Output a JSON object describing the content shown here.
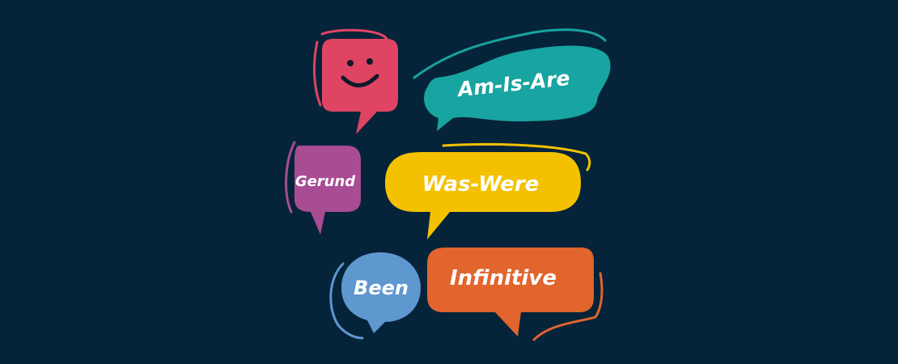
{
  "scene": {
    "background": "#05243a",
    "outline_color": "#f28a9e"
  },
  "bubbles": {
    "smiley": {
      "icon": "smiley-face-icon",
      "color": "#e04463"
    },
    "am_is_are": {
      "label": "Am-Is-Are",
      "color": "#18a4a0"
    },
    "gerund": {
      "label": "Gerund",
      "color": "#a84c94"
    },
    "was_were": {
      "label": "Was-Were",
      "color": "#f3c100"
    },
    "been": {
      "label": "Been",
      "color": "#5f97cf"
    },
    "infinitive": {
      "label": "Infinitive",
      "color": "#e1652c"
    }
  }
}
